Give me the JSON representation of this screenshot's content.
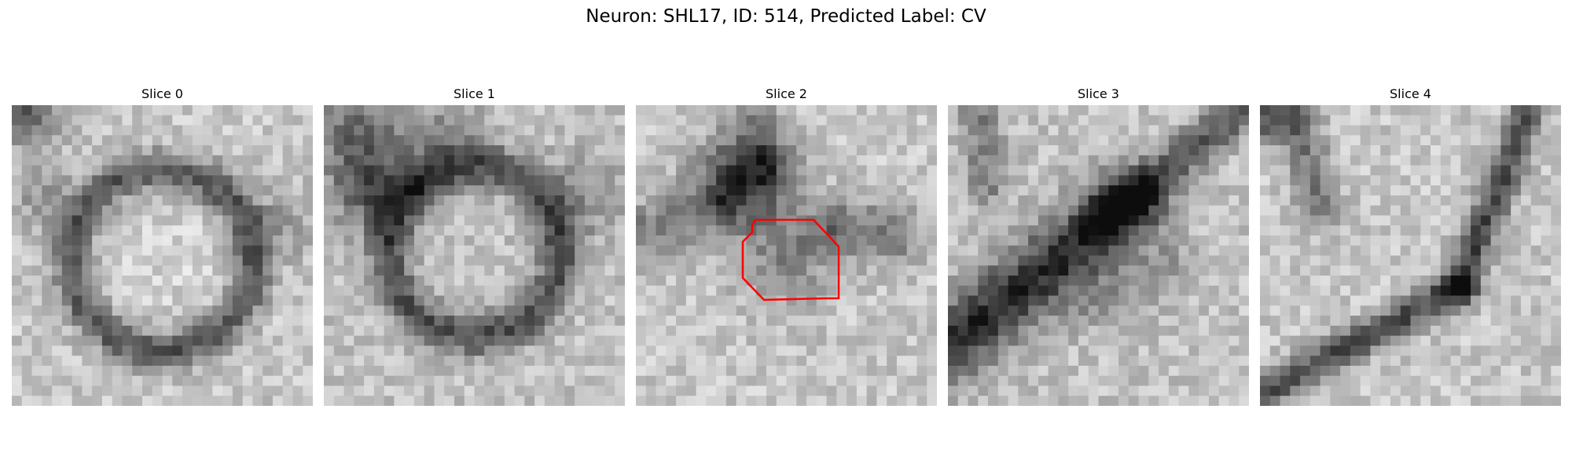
{
  "figure": {
    "title": "Neuron: SHL17, ID: 514, Predicted Label: CV"
  },
  "slices": [
    {
      "label": "Slice 0"
    },
    {
      "label": "Slice 1"
    },
    {
      "label": "Slice 2",
      "has_contour": true,
      "contour_color": "#ff0000"
    },
    {
      "label": "Slice 3"
    },
    {
      "label": "Slice 4"
    }
  ],
  "colormap": "gray"
}
